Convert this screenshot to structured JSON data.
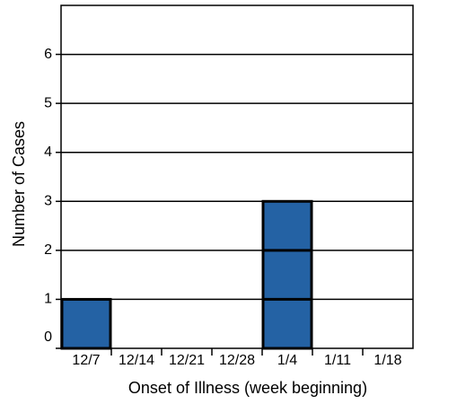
{
  "chart_data": {
    "type": "bar",
    "x_label": "Onset of Illness (week beginning)",
    "y_label": "Number of Cases",
    "categories": [
      "12/7",
      "12/14",
      "12/21",
      "12/28",
      "1/4",
      "1/11",
      "1/18"
    ],
    "values": [
      1,
      0,
      0,
      0,
      3,
      0,
      0
    ],
    "color": "#2462a4",
    "ylim": [
      0,
      7
    ],
    "yticks": [
      0,
      1,
      2,
      3,
      4,
      5,
      6
    ],
    "grid": true
  }
}
